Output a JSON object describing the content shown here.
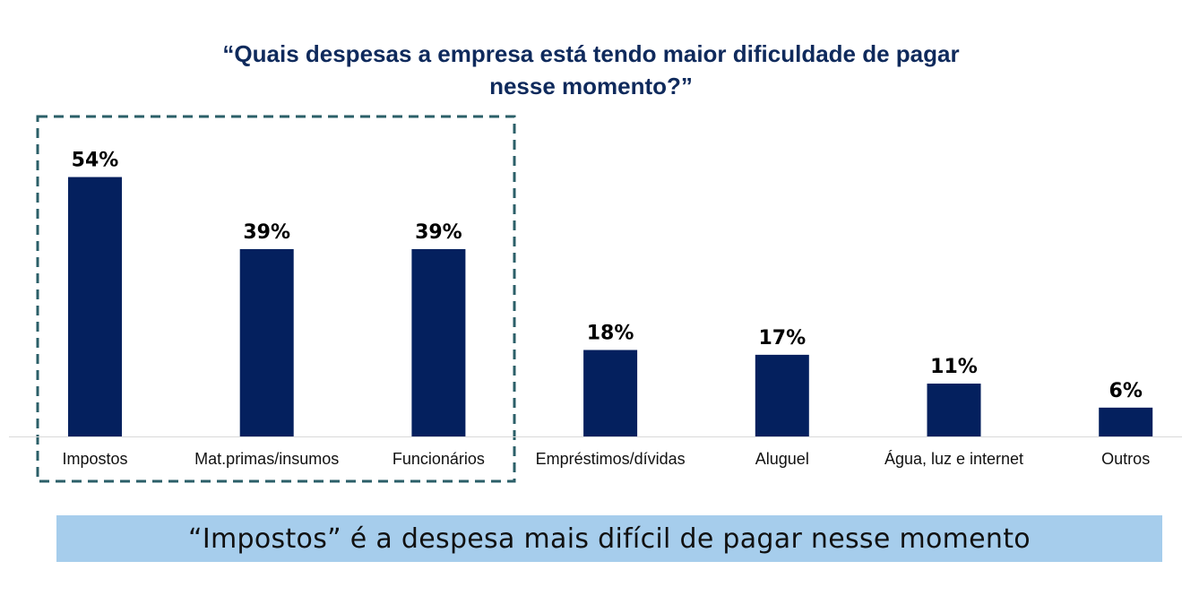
{
  "chart_data": {
    "type": "bar",
    "title_line1": "“Quais despesas a empresa está tendo maior dificuldade de pagar",
    "title_line2": "nesse momento?”",
    "categories": [
      "Impostos",
      "Mat.primas/insumos",
      "Funcionários",
      "Empréstimos/dívidas",
      "Aluguel",
      "Água, luz e internet",
      "Outros"
    ],
    "values": [
      54,
      39,
      39,
      18,
      17,
      11,
      6
    ],
    "data_labels": [
      "54%",
      "39%",
      "39%",
      "18%",
      "17%",
      "11%",
      "6%"
    ],
    "xlabel": "",
    "ylabel": "",
    "ylim": [
      0,
      60
    ],
    "grid": false,
    "highlighted_categories": [
      "Impostos",
      "Mat.primas/insumos",
      "Funcionários"
    ],
    "colors": {
      "bar": "#04205e",
      "title": "#0f2a5c",
      "highlight_box": "#2b5f68",
      "banner": "#a6cdec"
    }
  },
  "banner_text": "“Impostos” é a despesa mais difícil de pagar nesse momento"
}
